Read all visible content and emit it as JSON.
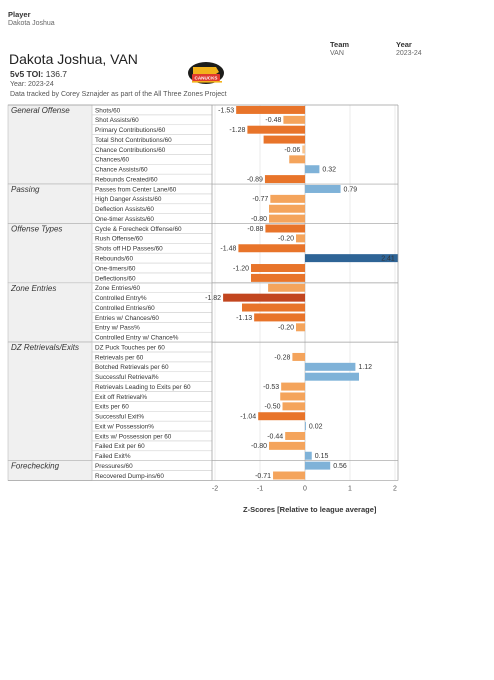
{
  "filters": {
    "player_label": "Player",
    "player_value": "Dakota Joshua",
    "team_label": "Team",
    "team_value": "VAN",
    "year_label": "Year",
    "year_value": "2023-24"
  },
  "header": {
    "title": "Dakota Joshua, VAN",
    "toi_label": "5v5 TOI:",
    "toi_value": "136.7",
    "year_text": "Year: 2023-24",
    "credit": "Data tracked by Corey Sznajder as part of the All Three Zones Project",
    "logo_icon": "canucks-skate-logo-icon",
    "logo_text": "CANUCKS"
  },
  "colors": {
    "strong_negative": "#c2461f",
    "negative": "#e8742a",
    "mild_negative": "#f4a45c",
    "slight_negative": "#f8c48f",
    "positive": "#7fb2d8",
    "strong_positive": "#2e6496",
    "grid": "#e6e6e6",
    "zero_line": "#cfcfcf"
  },
  "chart_data": {
    "type": "bar",
    "orientation": "horizontal",
    "xlabel": "Z-Scores [Relative to league average]",
    "xlim": [
      -2,
      2
    ],
    "xticks": [
      -2,
      -1,
      0,
      1,
      2
    ],
    "grid": true,
    "groups": [
      {
        "name": "General Offense",
        "metrics": [
          {
            "label": "Shots/60",
            "value": -1.53,
            "value_label": "-1.53"
          },
          {
            "label": "Shot Assists/60",
            "value": -0.48,
            "value_label": "-0.48"
          },
          {
            "label": "Primary Contributions/60",
            "value": -1.28,
            "value_label": "-1.28"
          },
          {
            "label": "Total Shot Contributions/60",
            "value": -0.92,
            "value_label": ""
          },
          {
            "label": "Chance Contributions/60",
            "value": -0.06,
            "value_label": "-0.06"
          },
          {
            "label": "Chances/60",
            "value": -0.35,
            "value_label": ""
          },
          {
            "label": "Chance Assists/60",
            "value": 0.32,
            "value_label": "0.32"
          },
          {
            "label": "Rebounds Created/60",
            "value": -0.89,
            "value_label": "-0.89"
          }
        ]
      },
      {
        "name": "Passing",
        "metrics": [
          {
            "label": "Passes from Center Lane/60",
            "value": 0.79,
            "value_label": "0.79"
          },
          {
            "label": "High Danger Assists/60",
            "value": -0.77,
            "value_label": "-0.77"
          },
          {
            "label": "Deflection Assists/60",
            "value": -0.8,
            "value_label": ""
          },
          {
            "label": "One-timer Assists/60",
            "value": -0.8,
            "value_label": "-0.80"
          }
        ]
      },
      {
        "name": "Offense Types",
        "metrics": [
          {
            "label": "Cycle & Forecheck Offense/60",
            "value": -0.88,
            "value_label": "-0.88"
          },
          {
            "label": "Rush Offense/60",
            "value": -0.2,
            "value_label": "-0.20"
          },
          {
            "label": "Shots off HD Passes/60",
            "value": -1.48,
            "value_label": "-1.48"
          },
          {
            "label": "Rebounds/60",
            "value": 2.41,
            "value_label": "2.41"
          },
          {
            "label": "One-timers/60",
            "value": -1.2,
            "value_label": "-1.20"
          },
          {
            "label": "Deflections/60",
            "value": -1.2,
            "value_label": ""
          }
        ]
      },
      {
        "name": "Zone Entries",
        "metrics": [
          {
            "label": "Zone Entries/60",
            "value": -0.82,
            "value_label": ""
          },
          {
            "label": "Controlled Entry%",
            "value": -1.82,
            "value_label": "-1.82"
          },
          {
            "label": "Controlled Entries/60",
            "value": -1.4,
            "value_label": ""
          },
          {
            "label": "Entries w/ Chances/60",
            "value": -1.13,
            "value_label": "-1.13"
          },
          {
            "label": "Entry w/ Pass%",
            "value": -0.2,
            "value_label": "-0.20"
          },
          {
            "label": "Controlled Entry w/ Chance%",
            "value": 0,
            "value_label": ""
          }
        ]
      },
      {
        "name": "DZ Retrievals/Exits",
        "metrics": [
          {
            "label": "DZ Puck Touches per 60",
            "value": 0,
            "value_label": ""
          },
          {
            "label": "Retrievals per 60",
            "value": -0.28,
            "value_label": "-0.28"
          },
          {
            "label": "Botched Retrievals per 60",
            "value": 1.12,
            "value_label": "1.12"
          },
          {
            "label": "Successful Retrieval%",
            "value": 1.2,
            "value_label": ""
          },
          {
            "label": "Retrievals Leading to Exits per 60",
            "value": -0.53,
            "value_label": "-0.53"
          },
          {
            "label": "Exit off Retrieval%",
            "value": -0.55,
            "value_label": ""
          },
          {
            "label": "Exits per 60",
            "value": -0.5,
            "value_label": "-0.50"
          },
          {
            "label": "Successful Exit%",
            "value": -1.04,
            "value_label": "-1.04"
          },
          {
            "label": "Exit w/ Possession%",
            "value": 0.02,
            "value_label": "0.02"
          },
          {
            "label": "Exits w/ Possession per 60",
            "value": -0.44,
            "value_label": "-0.44"
          },
          {
            "label": "Failed Exit per 60",
            "value": -0.8,
            "value_label": "-0.80"
          },
          {
            "label": "Failed Exit%",
            "value": 0.15,
            "value_label": "0.15"
          }
        ]
      },
      {
        "name": "Forechecking",
        "metrics": [
          {
            "label": "Pressures/60",
            "value": 0.56,
            "value_label": "0.56"
          },
          {
            "label": "Recovered Dump-ins/60",
            "value": -0.71,
            "value_label": "-0.71"
          }
        ]
      }
    ]
  }
}
